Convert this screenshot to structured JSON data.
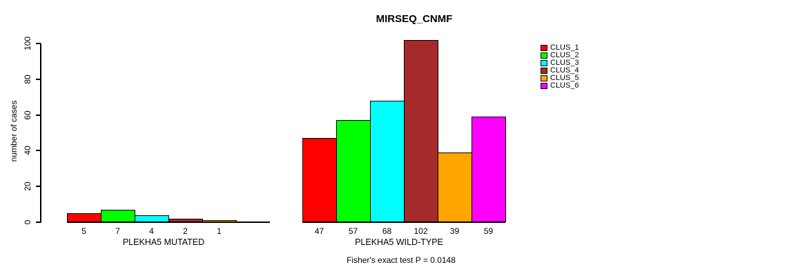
{
  "chart_data": {
    "type": "bar",
    "title": "MIRSEQ_CNMF",
    "ylabel": "number of cases",
    "ylim": [
      0,
      100
    ],
    "yticks": [
      0,
      20,
      40,
      60,
      80,
      100
    ],
    "grid": false,
    "legend_position": "right",
    "series": [
      {
        "name": "CLUS_1",
        "color": "#FF0000"
      },
      {
        "name": "CLUS_2",
        "color": "#00FF00"
      },
      {
        "name": "CLUS_3",
        "color": "#00FFFF"
      },
      {
        "name": "CLUS_4",
        "color": "#A52A2A"
      },
      {
        "name": "CLUS_5",
        "color": "#FFA500"
      },
      {
        "name": "CLUS_6",
        "color": "#FF00FF"
      }
    ],
    "groups": [
      {
        "label": "PLEKHA5 MUTATED",
        "values": [
          5,
          7,
          4,
          2,
          1,
          0
        ],
        "bar_labels": [
          "5",
          "7",
          "4",
          "2",
          "1",
          ""
        ]
      },
      {
        "label": "PLEKHA5 WILD-TYPE",
        "values": [
          47,
          57,
          68,
          102,
          39,
          59
        ],
        "bar_labels": [
          "47",
          "57",
          "68",
          "102",
          "39",
          "59"
        ]
      }
    ],
    "annotation": "Fisher's exact test P = 0.0148",
    "axis_color": "#000000",
    "background_color": "#FFFFFF"
  }
}
